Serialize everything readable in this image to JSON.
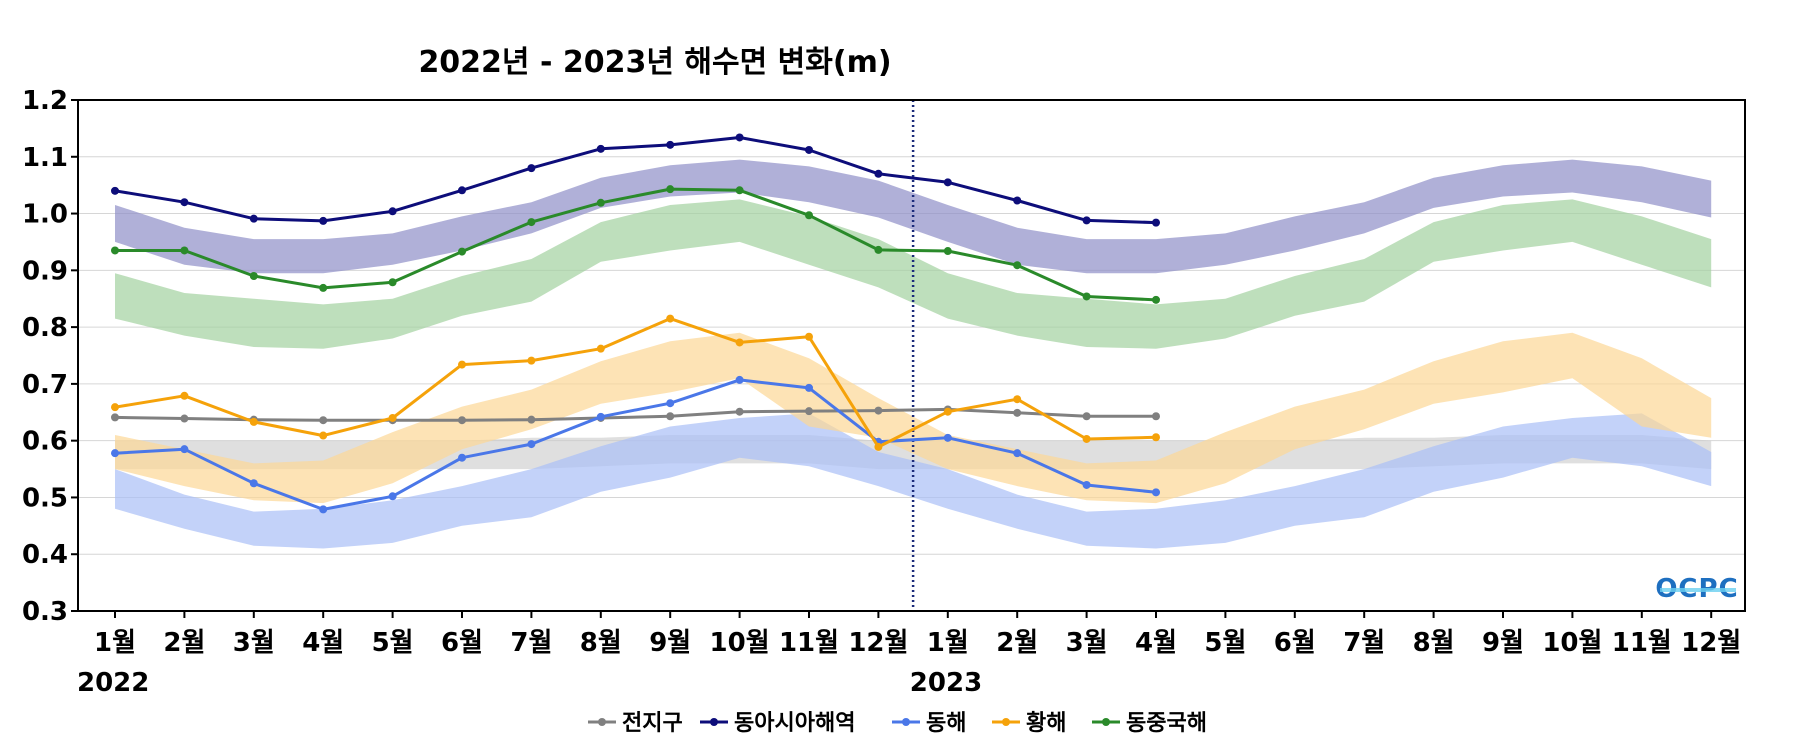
{
  "chart_data": {
    "type": "line",
    "title": "2022년 - 2023년 해수면 변화(m)",
    "xlabel": "",
    "ylabel": "",
    "ylim": [
      0.3,
      1.2
    ],
    "yticks": [
      "0.3",
      "0.4",
      "0.5",
      "0.6",
      "0.7",
      "0.8",
      "0.9",
      "1.0",
      "1.1",
      "1.2"
    ],
    "categories": [
      "1월",
      "2월",
      "3월",
      "4월",
      "5월",
      "6월",
      "7월",
      "8월",
      "9월",
      "10월",
      "11월",
      "12월",
      "1월",
      "2월",
      "3월",
      "4월",
      "5월",
      "6월",
      "7월",
      "8월",
      "9월",
      "10월",
      "11월",
      "12월"
    ],
    "year_labels": [
      {
        "index": 0,
        "label": "2022"
      },
      {
        "index": 12,
        "label": "2023"
      }
    ],
    "divider_after_index": 11,
    "grid": true,
    "legend_position": "bottom",
    "logo": "OCPC",
    "series": [
      {
        "name": "전지구",
        "color": "#808080",
        "values": [
          0.641,
          0.639,
          0.637,
          0.636,
          0.636,
          0.636,
          0.637,
          0.64,
          0.643,
          0.651,
          0.652,
          0.653,
          0.655,
          0.649,
          0.643,
          0.643,
          null,
          null,
          null,
          null,
          null,
          null,
          null,
          null
        ]
      },
      {
        "name": "동아시아해역",
        "color": "#0d0d7a",
        "values": [
          1.04,
          1.02,
          0.991,
          0.987,
          1.004,
          1.041,
          1.08,
          1.114,
          1.121,
          1.134,
          1.112,
          1.07,
          1.055,
          1.023,
          0.988,
          0.984,
          null,
          null,
          null,
          null,
          null,
          null,
          null,
          null
        ]
      },
      {
        "name": "동해",
        "color": "#4a77e8",
        "values": [
          0.578,
          0.585,
          0.525,
          0.479,
          0.502,
          0.57,
          0.594,
          0.642,
          0.666,
          0.707,
          0.693,
          0.598,
          0.605,
          0.578,
          0.522,
          0.509,
          null,
          null,
          null,
          null,
          null,
          null,
          null,
          null
        ]
      },
      {
        "name": "황해",
        "color": "#f5a20a",
        "values": [
          0.659,
          0.679,
          0.633,
          0.609,
          0.64,
          0.734,
          0.741,
          0.762,
          0.815,
          0.773,
          0.783,
          0.589,
          0.651,
          0.673,
          0.603,
          0.606,
          null,
          null,
          null,
          null,
          null,
          null,
          null,
          null
        ]
      },
      {
        "name": "동중국해",
        "color": "#2a8a2a",
        "values": [
          0.935,
          0.935,
          0.89,
          0.869,
          0.879,
          0.933,
          0.985,
          1.019,
          1.043,
          1.041,
          0.997,
          0.936,
          0.934,
          0.909,
          0.854,
          0.848,
          null,
          null,
          null,
          null,
          null,
          null,
          null,
          null
        ]
      }
    ],
    "bands": [
      {
        "series": "전지구",
        "fill": "#c9c9c9",
        "opacity": 0.6,
        "upper": [
          0.6,
          0.6,
          0.6,
          0.6,
          0.6,
          0.6,
          0.605,
          0.605,
          0.61,
          0.61,
          0.61,
          0.6,
          0.6,
          0.6,
          0.6,
          0.6,
          0.6,
          0.6,
          0.605,
          0.605,
          0.61,
          0.61,
          0.61,
          0.6
        ],
        "lower": [
          0.55,
          0.55,
          0.55,
          0.55,
          0.55,
          0.55,
          0.55,
          0.555,
          0.56,
          0.56,
          0.56,
          0.55,
          0.55,
          0.55,
          0.55,
          0.55,
          0.55,
          0.55,
          0.55,
          0.555,
          0.56,
          0.56,
          0.56,
          0.55
        ]
      },
      {
        "series": "동아시아해역",
        "fill": "#8e8ec8",
        "opacity": 0.7,
        "upper": [
          1.015,
          0.975,
          0.955,
          0.955,
          0.965,
          0.995,
          1.02,
          1.063,
          1.085,
          1.095,
          1.083,
          1.058,
          1.015,
          0.975,
          0.955,
          0.955,
          0.965,
          0.995,
          1.02,
          1.063,
          1.085,
          1.095,
          1.083,
          1.058
        ],
        "lower": [
          0.95,
          0.91,
          0.895,
          0.895,
          0.91,
          0.935,
          0.965,
          1.01,
          1.03,
          1.037,
          1.02,
          0.993,
          0.95,
          0.91,
          0.895,
          0.895,
          0.91,
          0.935,
          0.965,
          1.01,
          1.03,
          1.037,
          1.02,
          0.993
        ]
      },
      {
        "series": "동해",
        "fill": "#a9bff7",
        "opacity": 0.7,
        "upper": [
          0.55,
          0.505,
          0.475,
          0.48,
          0.495,
          0.52,
          0.55,
          0.59,
          0.625,
          0.64,
          0.648,
          0.58,
          0.55,
          0.505,
          0.475,
          0.48,
          0.495,
          0.52,
          0.55,
          0.59,
          0.625,
          0.64,
          0.648,
          0.58
        ],
        "lower": [
          0.48,
          0.445,
          0.415,
          0.41,
          0.42,
          0.45,
          0.465,
          0.51,
          0.535,
          0.57,
          0.555,
          0.52,
          0.48,
          0.445,
          0.415,
          0.41,
          0.42,
          0.45,
          0.465,
          0.51,
          0.535,
          0.57,
          0.555,
          0.52
        ]
      },
      {
        "series": "황해",
        "fill": "#fcd795",
        "opacity": 0.7,
        "upper": [
          0.61,
          0.585,
          0.56,
          0.565,
          0.615,
          0.66,
          0.69,
          0.74,
          0.775,
          0.79,
          0.745,
          0.675,
          0.61,
          0.585,
          0.56,
          0.565,
          0.615,
          0.66,
          0.69,
          0.74,
          0.775,
          0.79,
          0.745,
          0.675
        ],
        "lower": [
          0.55,
          0.52,
          0.495,
          0.49,
          0.525,
          0.585,
          0.62,
          0.665,
          0.685,
          0.71,
          0.625,
          0.605,
          0.55,
          0.52,
          0.495,
          0.49,
          0.525,
          0.585,
          0.62,
          0.665,
          0.685,
          0.71,
          0.625,
          0.605
        ]
      },
      {
        "series": "동중국해",
        "fill": "#a3d1a0",
        "opacity": 0.7,
        "upper": [
          0.895,
          0.86,
          0.85,
          0.84,
          0.85,
          0.89,
          0.92,
          0.985,
          1.015,
          1.025,
          0.995,
          0.955,
          0.895,
          0.86,
          0.85,
          0.84,
          0.85,
          0.89,
          0.92,
          0.985,
          1.015,
          1.025,
          0.995,
          0.955
        ],
        "lower": [
          0.815,
          0.785,
          0.765,
          0.762,
          0.78,
          0.82,
          0.845,
          0.915,
          0.935,
          0.95,
          0.91,
          0.87,
          0.815,
          0.785,
          0.765,
          0.762,
          0.78,
          0.82,
          0.845,
          0.915,
          0.935,
          0.95,
          0.91,
          0.87
        ]
      }
    ]
  }
}
